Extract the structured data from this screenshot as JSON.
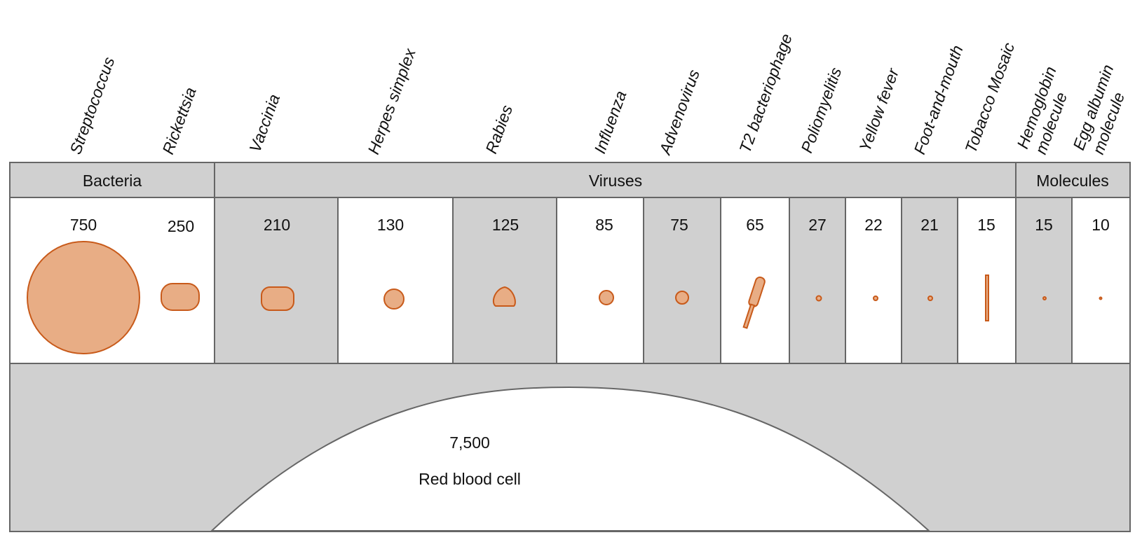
{
  "colors": {
    "panel_gray": "#d0d0d0",
    "border": "#666666",
    "organism_fill": "#e8ad85",
    "organism_stroke": "#c85a1a",
    "white": "#ffffff"
  },
  "groups": [
    {
      "key": "bacteria",
      "label": "Bacteria"
    },
    {
      "key": "viruses",
      "label": "Viruses"
    },
    {
      "key": "molecules",
      "label": "Molecules"
    }
  ],
  "items": [
    {
      "name": "Streptococcus",
      "size": "750",
      "shape": "circle-large"
    },
    {
      "name": "Rickettsia",
      "size": "250",
      "shape": "rounded-rect"
    },
    {
      "name": "Vaccinia",
      "size": "210",
      "shape": "rounded-rect"
    },
    {
      "name": "Herpes simplex",
      "size": "130",
      "shape": "circle"
    },
    {
      "name": "Rabies",
      "size": "125",
      "shape": "bullet"
    },
    {
      "name": "Influenza",
      "size": "85",
      "shape": "circle"
    },
    {
      "name": "Advenovirus",
      "size": "75",
      "shape": "circle"
    },
    {
      "name": "T2 bacteriophage",
      "size": "65",
      "shape": "phage"
    },
    {
      "name": "Poliomyelitis",
      "size": "27",
      "shape": "dot"
    },
    {
      "name": "Yellow fever",
      "size": "22",
      "shape": "dot"
    },
    {
      "name": "Foot-and-mouth",
      "size": "21",
      "shape": "dot"
    },
    {
      "name": "Tobacco Mosaic",
      "size": "15",
      "shape": "rod"
    },
    {
      "name": "Hemoglobin molecule",
      "label_lines": [
        "Hemoglobin",
        "molecule"
      ],
      "size": "15",
      "shape": "dot"
    },
    {
      "name": "Egg albumin molecule",
      "label_lines": [
        "Egg albumin",
        "molecule"
      ],
      "size": "10",
      "shape": "dot"
    }
  ],
  "red_blood_cell": {
    "size": "7,500",
    "label": "Red blood cell"
  }
}
